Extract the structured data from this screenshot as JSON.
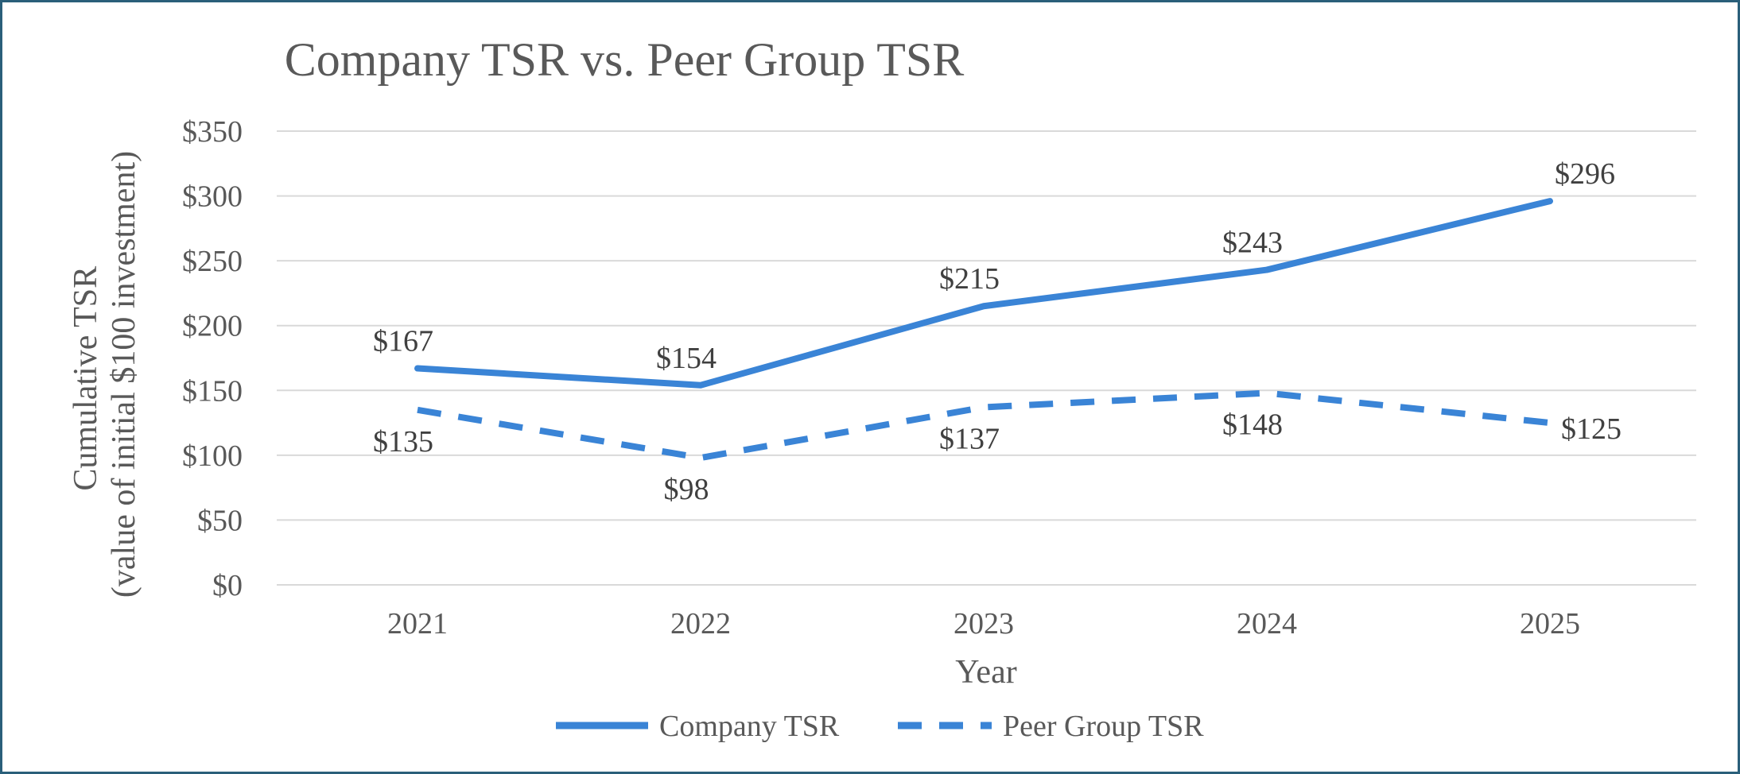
{
  "chart_data": {
    "type": "line",
    "title": "Company TSR vs. Peer Group TSR",
    "xlabel": "Year",
    "ylabel_lines": [
      "Cumulative TSR",
      "(value of initial $100 investment)"
    ],
    "categories": [
      "2021",
      "2022",
      "2023",
      "2024",
      "2025"
    ],
    "ylim": [
      0,
      350
    ],
    "ytick_values": [
      0,
      50,
      100,
      150,
      200,
      250,
      300,
      350
    ],
    "ytick_labels": [
      "$0",
      "$50",
      "$100",
      "$150",
      "$200",
      "$250",
      "$300",
      "$350"
    ],
    "grid": true,
    "legend_position": "bottom",
    "series": [
      {
        "name": "Company TSR",
        "style": "solid",
        "color": "#3a84d6",
        "values": [
          167,
          154,
          215,
          243,
          296
        ],
        "labels": [
          "$167",
          "$154",
          "$215",
          "$243",
          "$296"
        ],
        "label_position": "above"
      },
      {
        "name": "Peer Group TSR",
        "style": "dashed",
        "color": "#3a84d6",
        "values": [
          135,
          98,
          137,
          148,
          125
        ],
        "labels": [
          "$135",
          "$98",
          "$137",
          "$148",
          "$125"
        ],
        "label_position": "below"
      }
    ]
  }
}
